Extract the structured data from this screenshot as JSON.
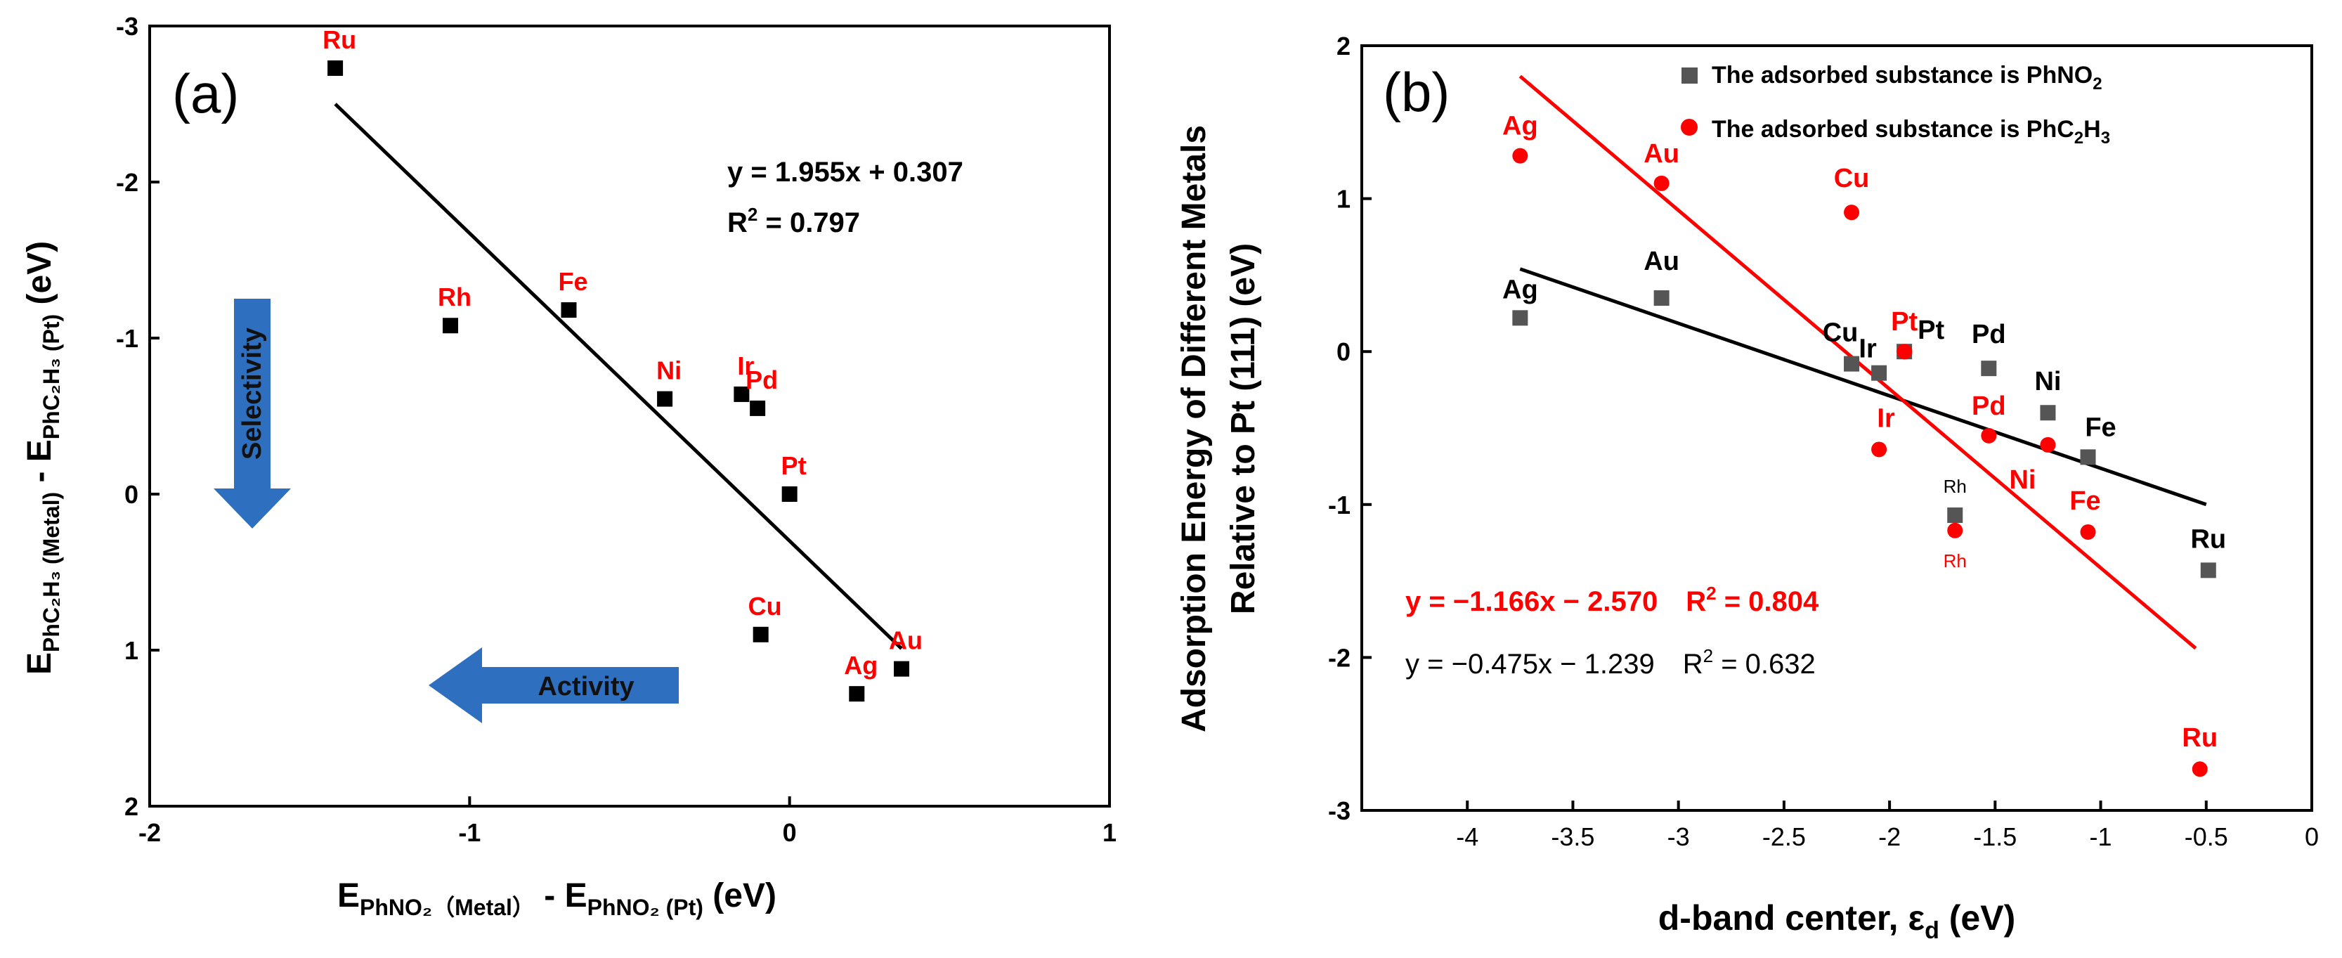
{
  "chart_data": [
    {
      "panel_label": "(a)",
      "type": "scatter",
      "xlim": [
        -2,
        1
      ],
      "ylim": [
        -3,
        2
      ],
      "y_inverted": true,
      "x_ticks": [
        "-2",
        "-1",
        "0",
        "1"
      ],
      "y_ticks": [
        "-3",
        "-2",
        "-1",
        "0",
        "1",
        "2"
      ],
      "xlabel": {
        "main": "E",
        "sub": "PhNO₂（Metal）",
        "mid": " -  E",
        "sub2": "PhNO₂ (Pt)",
        "tail": " (eV)"
      },
      "ylabel": {
        "main": "E",
        "sub": "PhC₂H₃ (Metal)",
        "mid": " - E",
        "sub2": "PhC₂H₃ (Pt)",
        "tail": " (eV)"
      },
      "points": [
        {
          "label": "Ru",
          "x": -1.42,
          "y": -2.73
        },
        {
          "label": "Rh",
          "x": -1.06,
          "y": -1.08
        },
        {
          "label": "Fe",
          "x": -0.69,
          "y": -1.18
        },
        {
          "label": "Ni",
          "x": -0.39,
          "y": -0.61
        },
        {
          "label": "Ir",
          "x": -0.15,
          "y": -0.64
        },
        {
          "label": "Pd",
          "x": -0.1,
          "y": -0.55
        },
        {
          "label": "Pt",
          "x": 0.0,
          "y": 0.0
        },
        {
          "label": "Cu",
          "x": -0.09,
          "y": 0.9
        },
        {
          "label": "Ag",
          "x": 0.21,
          "y": 1.28
        },
        {
          "label": "Au",
          "x": 0.35,
          "y": 1.12
        }
      ],
      "fit_line": {
        "x": [
          -1.42,
          0.35
        ],
        "y": [
          -2.5,
          0.99
        ]
      },
      "equation": "y = 1.955x + 0.307",
      "r2_prefix": "R",
      "r2_value": " = 0.797",
      "arrows": {
        "selectivity": "Selectivity",
        "activity": "Activity"
      },
      "marker_color": "#000000",
      "label_color": "#ff0000"
    },
    {
      "panel_label": "(b)",
      "type": "scatter",
      "xlim": [
        -4.5,
        0
      ],
      "ylim": [
        -3,
        2
      ],
      "x_ticks": [
        "-4",
        "-3.5",
        "-3",
        "-2.5",
        "-2",
        "-1.5",
        "-1",
        "-0.5",
        "0"
      ],
      "y_ticks": [
        "-3",
        "-2",
        "-1",
        "0",
        "1",
        "2"
      ],
      "xlabel": "d-band center, ε",
      "xlabel_sub": "d",
      "xlabel_tail": " (eV)",
      "ylabel_line1": "Adsorption Energy of Different Metals",
      "ylabel_line2": "Relative to Pt (111) (eV)",
      "legend": [
        {
          "prefix": "The adsorbed substance is PhNO",
          "sub": "2",
          "mid": "",
          "sub2": "",
          "tail": ""
        },
        {
          "prefix": "The adsorbed substance is PhC",
          "sub": "2",
          "mid": "H",
          "sub2": "3",
          "tail": ""
        }
      ],
      "series": [
        {
          "name": "The adsorbed substance is PhNO2",
          "color": "#555555",
          "label_color": "#000000",
          "points": [
            {
              "label": "Ag",
              "x": -3.75,
              "y": 0.22
            },
            {
              "label": "Au",
              "x": -3.08,
              "y": 0.35
            },
            {
              "label": "Cu",
              "x": -2.18,
              "y": -0.08
            },
            {
              "label": "Ir",
              "x": -2.05,
              "y": -0.14
            },
            {
              "label": "Pt",
              "x": -1.93,
              "y": 0.0
            },
            {
              "label": "Pd",
              "x": -1.53,
              "y": -0.11
            },
            {
              "label": "Ni",
              "x": -1.25,
              "y": -0.4
            },
            {
              "label": "Fe",
              "x": -1.06,
              "y": -0.69
            },
            {
              "label": "Rh",
              "x": -1.69,
              "y": -1.07
            },
            {
              "label": "Ru",
              "x": -0.49,
              "y": -1.43
            }
          ],
          "fit_line": {
            "x": [
              -3.75,
              -0.5
            ],
            "y": [
              0.54,
              -1.0
            ]
          },
          "equation": "y = −0.475x − 1.239",
          "r2_value": " = 0.632"
        },
        {
          "name": "The adsorbed substance is PhC2H3",
          "color": "#ff0000",
          "label_color": "#ff0000",
          "points": [
            {
              "label": "Ag",
              "x": -3.75,
              "y": 1.28
            },
            {
              "label": "Au",
              "x": -3.08,
              "y": 1.1
            },
            {
              "label": "Cu",
              "x": -2.18,
              "y": 0.91
            },
            {
              "label": "Pt",
              "x": -1.93,
              "y": 0.0
            },
            {
              "label": "Ir",
              "x": -2.05,
              "y": -0.64
            },
            {
              "label": "Pd",
              "x": -1.53,
              "y": -0.55
            },
            {
              "label": "Ni",
              "x": -1.25,
              "y": -0.61
            },
            {
              "label": "Fe",
              "x": -1.06,
              "y": -1.18
            },
            {
              "label": "Rh",
              "x": -1.69,
              "y": -1.17
            },
            {
              "label": "Ru",
              "x": -0.53,
              "y": -2.73
            }
          ],
          "fit_line": {
            "x": [
              -3.75,
              -0.55
            ],
            "y": [
              1.8,
              -1.94
            ]
          },
          "equation": "y = −1.166x − 2.570",
          "r2_value": " = 0.804"
        }
      ],
      "r2_prefix": "R"
    }
  ]
}
